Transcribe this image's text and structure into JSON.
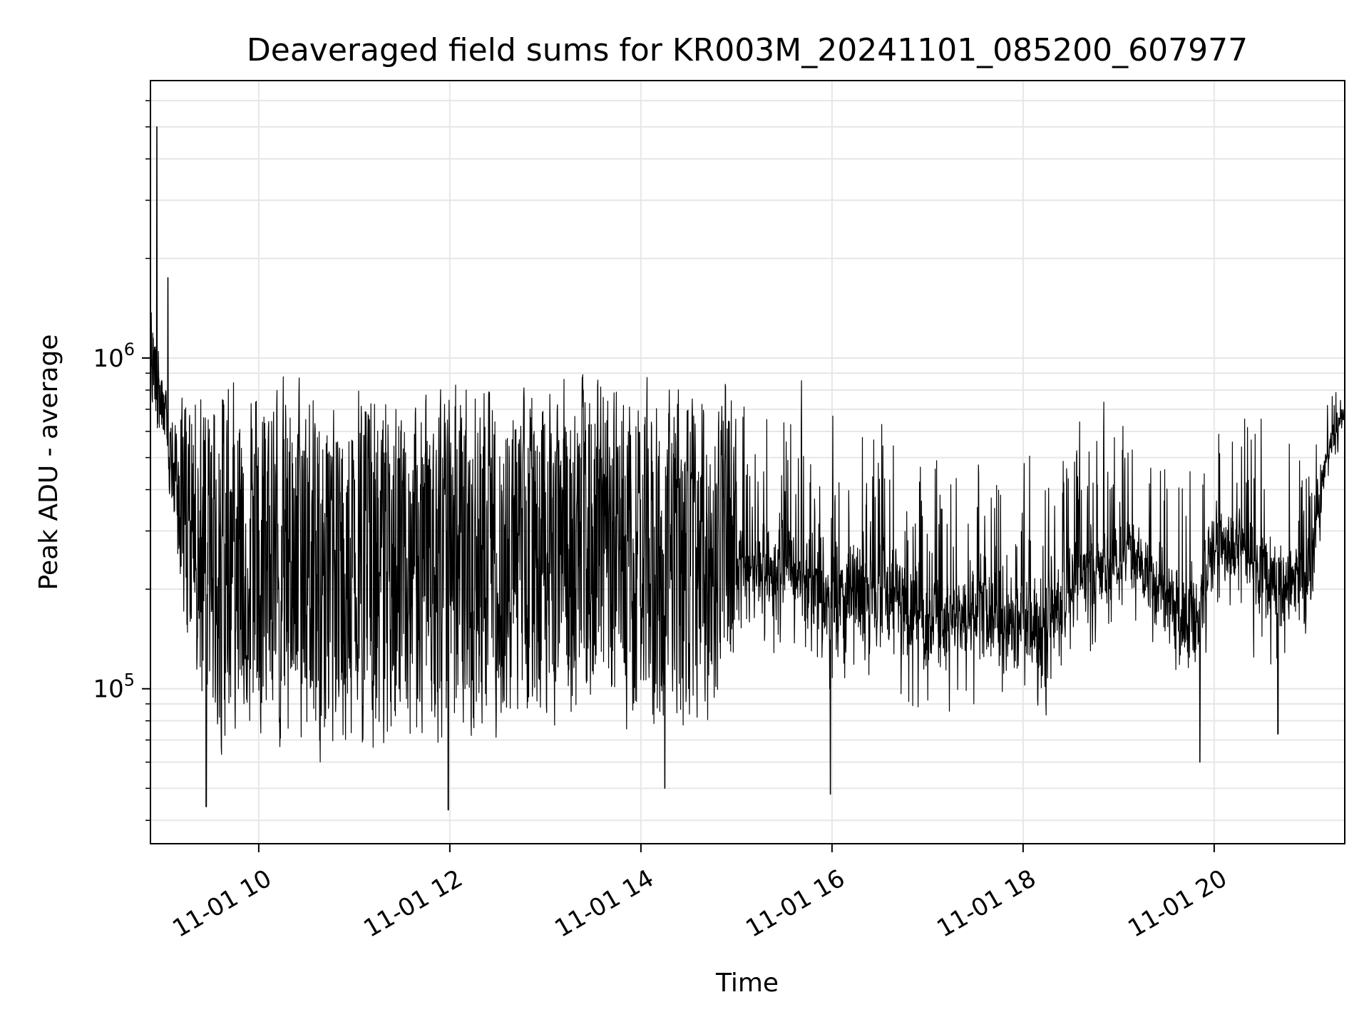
{
  "chart_data": {
    "type": "line",
    "title": "Deaveraged field sums for KR003M_20241101_085200_607977",
    "xlabel": "Time",
    "ylabel": "Peak ADU - average",
    "x_scale": "time",
    "y_scale": "log",
    "xlim": [
      "2024-11-01 08:52",
      "2024-11-01 21:22"
    ],
    "ylim": [
      34000,
      6900000
    ],
    "grid": true,
    "legend": "none",
    "x_ticks": [
      "11-01 10",
      "11-01 12",
      "11-01 14",
      "11-01 16",
      "11-01 18",
      "11-01 20"
    ],
    "y_ticks": [
      {
        "value": 100000,
        "base": "10",
        "exp": "5"
      },
      {
        "value": 1000000,
        "base": "10",
        "exp": "6"
      }
    ],
    "line_color": "#000000",
    "grid_color": "#e6e6e6",
    "series": [
      {
        "x": [
          "08:52",
          "09:00",
          "09:08",
          "09:15",
          "09:30",
          "09:45",
          "10:00",
          "10:15",
          "10:30",
          "10:45",
          "11:00",
          "11:15",
          "11:30",
          "11:45",
          "12:00",
          "12:15",
          "12:30",
          "12:45",
          "13:00",
          "13:15",
          "13:30",
          "13:45",
          "14:00",
          "14:15",
          "14:30",
          "14:45",
          "15:00",
          "15:15",
          "15:30",
          "15:45",
          "16:00",
          "16:15",
          "16:30",
          "16:45",
          "17:00",
          "17:15",
          "17:30",
          "17:45",
          "18:00",
          "18:15",
          "18:30",
          "18:45",
          "19:00",
          "19:15",
          "19:30",
          "19:45",
          "20:00",
          "20:15",
          "20:30",
          "20:45",
          "21:00",
          "21:10",
          "21:22"
        ],
        "upper": [
          1700000,
          900000,
          650000,
          1000000,
          1000000,
          1050000,
          1000000,
          1000000,
          1000000,
          1000000,
          1050000,
          1000000,
          950000,
          950000,
          1050000,
          950000,
          950000,
          1000000,
          1050000,
          1000000,
          1000000,
          950000,
          950000,
          900000,
          900000,
          1000000,
          1000000,
          950000,
          950000,
          950000,
          950000,
          950000,
          950000,
          900000,
          750000,
          700000,
          800000,
          700000,
          650000,
          750000,
          800000,
          850000,
          850000,
          800000,
          700000,
          650000,
          900000,
          900000,
          1000000,
          850000,
          700000,
          800000,
          1000000
        ],
        "lower": [
          700000,
          500000,
          250000,
          100000,
          60000,
          60000,
          60000,
          55000,
          55000,
          55000,
          60000,
          55000,
          52000,
          55000,
          58000,
          60000,
          65000,
          70000,
          70000,
          68000,
          65000,
          65000,
          65000,
          60000,
          62000,
          68000,
          95000,
          105000,
          110000,
          100000,
          80000,
          85000,
          85000,
          75000,
          65000,
          75000,
          70000,
          75000,
          70000,
          70000,
          100000,
          110000,
          120000,
          130000,
          100000,
          65000,
          140000,
          150000,
          100000,
          95000,
          110000,
          380000,
          560000
        ]
      }
    ],
    "peaks": [
      {
        "x": "08:56",
        "y": 5000000
      },
      {
        "x": "09:03",
        "y": 1750000
      }
    ],
    "minima": [
      {
        "x": "09:27",
        "y": 44000
      },
      {
        "x": "11:59",
        "y": 43000
      },
      {
        "x": "14:15",
        "y": 50000
      },
      {
        "x": "15:59",
        "y": 48000
      },
      {
        "x": "19:51",
        "y": 60000
      },
      {
        "x": "20:40",
        "y": 73000
      }
    ]
  }
}
